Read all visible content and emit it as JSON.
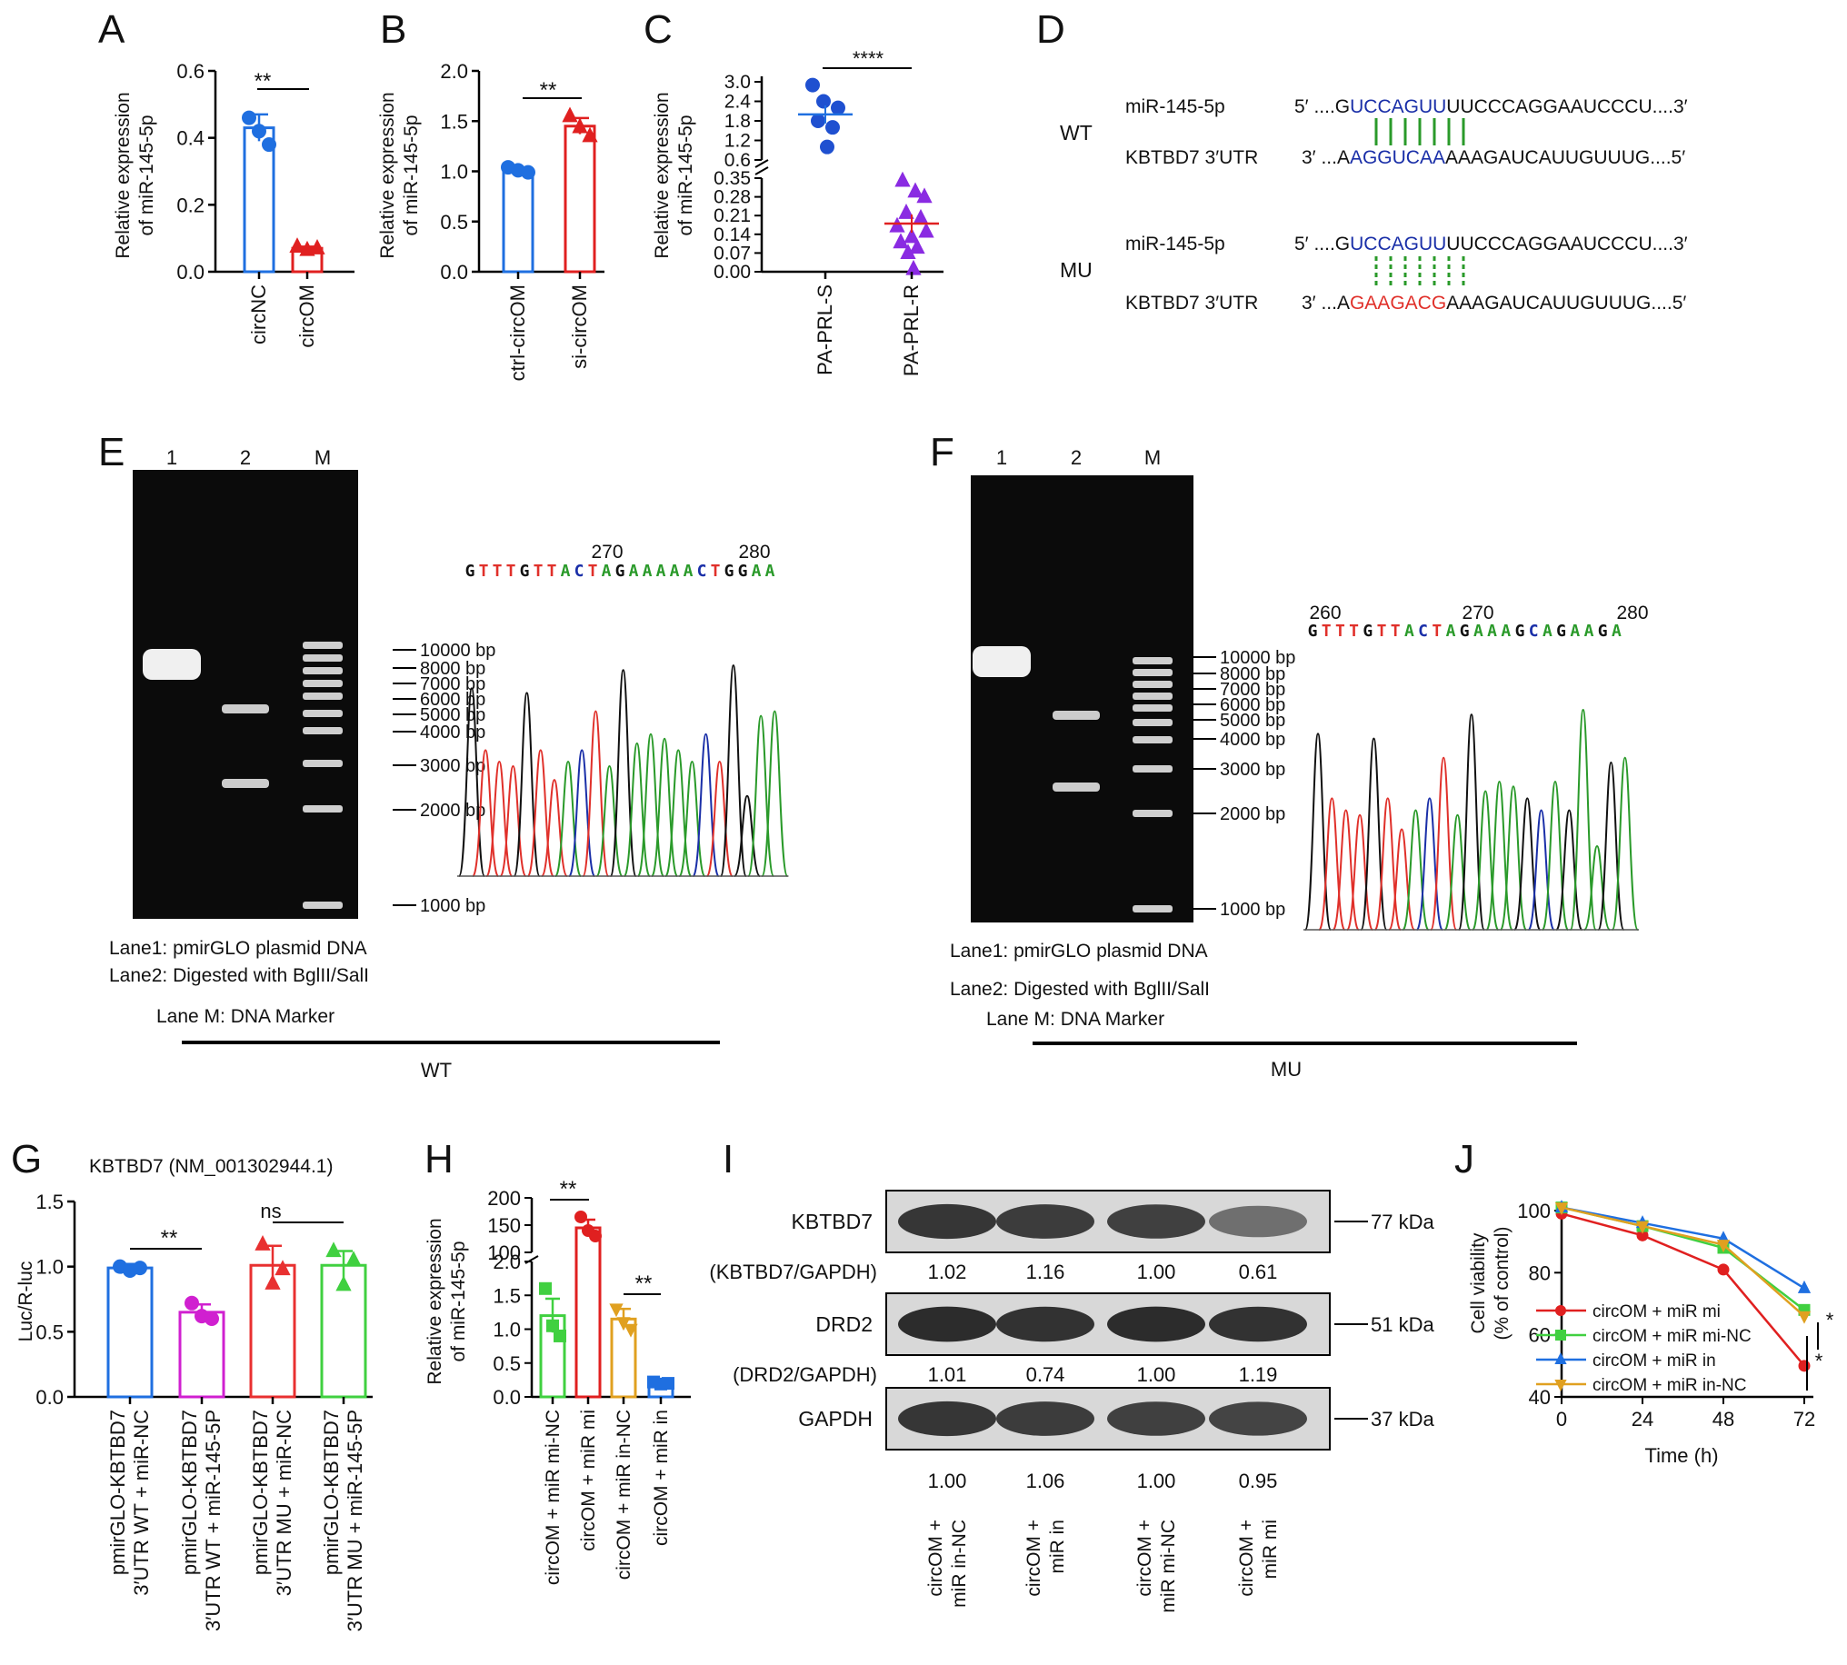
{
  "panels": {
    "A": {
      "letter": "A",
      "ylabel": [
        "Relative expression",
        "of miR-145-5p"
      ],
      "ticks": [
        "0.0",
        "0.2",
        "0.4",
        "0.6"
      ],
      "sig": "**"
    },
    "B": {
      "letter": "B",
      "ylabel": [
        "Relative expression",
        "of miR-145-5p"
      ],
      "ticks": [
        "0.0",
        "0.5",
        "1.0",
        "1.5",
        "2.0"
      ],
      "sig": "**"
    },
    "C": {
      "letter": "C",
      "ylabel": [
        "Relative expression",
        "of miR-145-5p"
      ],
      "ticks_low": [
        "0.00",
        "0.07",
        "0.14",
        "0.21",
        "0.28",
        "0.35"
      ],
      "ticks_high": [
        "0.6",
        "1.2",
        "1.8",
        "2.4",
        "3.0"
      ],
      "sig": "****"
    },
    "D": {
      "letter": "D",
      "groups": [
        {
          "label": "WT",
          "line1_name": "miR-145-5p",
          "line1_pre": "5′ ....G",
          "line1_motif": "UCCAGUU",
          "line1_post": "UUCCCAGGAAUCCCU....3′",
          "line2_name": "KBTBD7 3′UTR",
          "line2_pre": "3′ ...A",
          "line2_motif": "AGGUCAA",
          "line2_post": "AAAGAUCAUUGUUUG....5′",
          "pairing": "solid"
        },
        {
          "label": "MU",
          "line1_name": "miR-145-5p",
          "line1_pre": "5′ ....G",
          "line1_motif": "UCCAGUU",
          "line1_post": "UUCCCAGGAAUCCCU....3′",
          "line2_name": "KBTBD7 3′UTR",
          "line2_pre": "3′ ...A",
          "line2_motif": "GAAGACG",
          "line2_post": "AAAGAUCAUUGUUUG....5′",
          "pairing": "dashed"
        }
      ],
      "colors": {
        "mir_motif": "#1a2fa8",
        "wt_motif": "#1a2fa8",
        "mu_motif": "#e0302a",
        "pairing": "#2a9a2a"
      }
    },
    "E": {
      "letter": "E",
      "lane_labels": [
        "1",
        "2",
        "M"
      ],
      "markers": [
        "10000 bp",
        "8000 bp",
        "7000 bp",
        "6000 bp",
        "5000 bp",
        "4000 bp",
        "3000 bp",
        "2000 bp",
        "1000 bp"
      ],
      "seq_positions": [
        "270",
        "280"
      ],
      "sequence": "GTTTGTTACTAGAAAAACTGGAA",
      "captions": [
        "Lane1: pmirGLO plasmid DNA",
        "Lane2: Digested with BglII/SalI",
        "Lane M: DNA Marker"
      ],
      "group_label": "WT"
    },
    "F": {
      "letter": "F",
      "lane_labels": [
        "1",
        "2",
        "M"
      ],
      "markers": [
        "10000 bp",
        "8000 bp",
        "7000 bp",
        "6000 bp",
        "5000 bp",
        "4000 bp",
        "3000 bp",
        "2000 bp",
        "1000 bp"
      ],
      "seq_positions": [
        "260",
        "270",
        "280"
      ],
      "sequence": "GTTTGTTACTAGAAAGCAGAAGA",
      "captions": [
        "Lane1: pmirGLO plasmid DNA",
        "Lane2: Digested with BglII/SalI",
        "Lane M: DNA Marker"
      ],
      "group_label": "MU"
    },
    "G": {
      "letter": "G",
      "title": "KBTBD7 (NM_001302944.1)",
      "ylabel": "Luc/R-luc",
      "ticks": [
        "0.0",
        "0.5",
        "1.0",
        "1.5"
      ],
      "sig1": "**",
      "sig2": "ns"
    },
    "H": {
      "letter": "H",
      "ylabel": [
        "Relative expression",
        "of miR-145-5p"
      ],
      "ticks_low": [
        "0.0",
        "0.5",
        "1.0",
        "1.5",
        "2.0"
      ],
      "ticks_high": [
        "100",
        "150",
        "200"
      ],
      "sig1": "**",
      "sig2": "**"
    },
    "I": {
      "letter": "I",
      "rows": [
        {
          "name": "KBTBD7",
          "kda": "77 kDa",
          "ratio_label": "(KBTBD7/GAPDH)",
          "ratios": [
            "1.02",
            "1.16",
            "1.00",
            "0.61"
          ]
        },
        {
          "name": "DRD2",
          "kda": "51 kDa",
          "ratio_label": "(DRD2/GAPDH)",
          "ratios": [
            "1.01",
            "0.74",
            "1.00",
            "1.19"
          ]
        },
        {
          "name": "GAPDH",
          "kda": "37 kDa",
          "ratio_label": "",
          "ratios": [
            "1.00",
            "1.06",
            "1.00",
            "0.95"
          ]
        }
      ],
      "lanes": [
        [
          "circOM +",
          "miR in-NC"
        ],
        [
          "circOM +",
          "miR in"
        ],
        [
          "circOM +",
          "miR mi-NC"
        ],
        [
          "circOM +",
          "miR mi"
        ]
      ]
    },
    "J": {
      "letter": "J",
      "ylabel": [
        "Cell viability",
        "(% of control)"
      ],
      "xlabel": "Time (h)",
      "sig": "*"
    }
  },
  "chart_data": [
    {
      "panel": "A",
      "type": "bar",
      "categories": [
        "circNC",
        "circOM"
      ],
      "values": [
        0.43,
        0.07
      ],
      "errors": [
        0.04,
        0.005
      ],
      "ylim": [
        0,
        0.6
      ],
      "points": [
        [
          0.46,
          0.42,
          0.38
        ],
        [
          0.075,
          0.065,
          0.07
        ]
      ],
      "colors": [
        "#1f6fe0",
        "#e02020"
      ]
    },
    {
      "panel": "B",
      "type": "bar",
      "categories": [
        "ctrl-circOM",
        "si-circOM"
      ],
      "values": [
        1.01,
        1.45
      ],
      "errors": [
        0.02,
        0.08
      ],
      "ylim": [
        0,
        2.0
      ],
      "points": [
        [
          1.04,
          1.01,
          0.99
        ],
        [
          1.55,
          1.44,
          1.35
        ]
      ],
      "colors": [
        "#1f6fe0",
        "#e02020"
      ]
    },
    {
      "panel": "C",
      "type": "scatter",
      "categories": [
        "PA-PRL-S",
        "PA-PRL-R"
      ],
      "values": [
        2.0,
        0.18
      ],
      "points": [
        [
          2.9,
          2.4,
          2.2,
          1.8,
          1.6,
          1.0
        ],
        [
          0.34,
          0.3,
          0.28,
          0.22,
          0.2,
          0.17,
          0.15,
          0.13,
          0.11,
          0.09,
          0.07,
          0.01
        ]
      ],
      "colors": [
        "#1f50d0",
        "#8a2be2"
      ],
      "mean_colors": [
        "#1f6fe0",
        "#e02020"
      ]
    },
    {
      "panel": "G",
      "type": "bar",
      "categories": [
        "pmirGLO-KBTBD7 3′UTR WT + miR-NC",
        "pmirGLO-KBTBD7 3′UTR WT + miR-145-5P",
        "pmirGLO-KBTBD7 3′UTR MU + miR-NC",
        "pmirGLO-KBTBD7 3′UTR MU + miR-145-5P"
      ],
      "values": [
        0.99,
        0.65,
        1.01,
        1.01
      ],
      "errors": [
        0.03,
        0.06,
        0.15,
        0.11
      ],
      "ylim": [
        0,
        1.5
      ],
      "points": [
        [
          1.0,
          0.97,
          0.99
        ],
        [
          0.72,
          0.62,
          0.6
        ],
        [
          1.17,
          0.87,
          0.98
        ],
        [
          1.12,
          0.86,
          1.05
        ]
      ],
      "colors": [
        "#1f6fe0",
        "#d020d0",
        "#e83030",
        "#40d040"
      ]
    },
    {
      "panel": "H",
      "type": "bar",
      "categories": [
        "circOM + miR mi-NC",
        "circOM + miR mi",
        "circOM + miR in-NC",
        "circOM + miR in"
      ],
      "values": [
        1.2,
        145,
        1.15,
        0.2
      ],
      "errors": [
        0.25,
        15,
        0.15,
        0.03
      ],
      "points": [
        [
          1.6,
          1.05,
          0.9
        ],
        [
          165,
          140,
          130
        ],
        [
          1.3,
          1.1,
          1.0
        ],
        [
          0.22,
          0.19,
          0.2
        ]
      ],
      "colors": [
        "#40d040",
        "#e02020",
        "#e0a020",
        "#1f6fe0"
      ]
    },
    {
      "panel": "J",
      "type": "line",
      "x": [
        0,
        24,
        48,
        72
      ],
      "xlim": [
        0,
        72
      ],
      "ylim": [
        40,
        100
      ],
      "xticks": [
        "0",
        "24",
        "48",
        "72"
      ],
      "yticks": [
        "40",
        "60",
        "80",
        "100"
      ],
      "series": [
        {
          "name": "circOM + miR mi",
          "values": [
            99,
            92,
            81,
            50
          ],
          "color": "#e02020",
          "marker": "circle"
        },
        {
          "name": "circOM + miR mi-NC",
          "values": [
            101,
            95,
            88,
            68
          ],
          "color": "#40d040",
          "marker": "square"
        },
        {
          "name": "circOM + miR in",
          "values": [
            101,
            96,
            91,
            75
          ],
          "color": "#1f6fe0",
          "marker": "triangle"
        },
        {
          "name": "circOM + miR in-NC",
          "values": [
            101,
            95,
            89,
            66
          ],
          "color": "#e0a020",
          "marker": "triangle-down"
        }
      ]
    }
  ]
}
